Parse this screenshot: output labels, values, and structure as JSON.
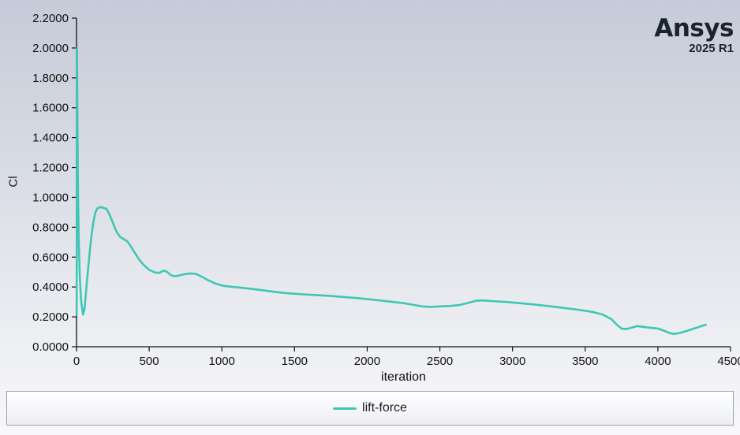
{
  "logo": {
    "brand": "Ansys",
    "version": "2025 R1"
  },
  "chart_data": {
    "type": "line",
    "title": "",
    "xlabel": "iteration",
    "ylabel": "Cl",
    "xlim": [
      0,
      4500
    ],
    "ylim": [
      0,
      2.2
    ],
    "xticks": [
      0,
      500,
      1000,
      1500,
      2000,
      2500,
      3000,
      3500,
      4000,
      4500
    ],
    "yticks": [
      0,
      0.2,
      0.4,
      0.6,
      0.8,
      1.0,
      1.2,
      1.4,
      1.6,
      1.8,
      2.0,
      2.2
    ],
    "ytick_decimals": 4,
    "grid": false,
    "legend_position": "bottom",
    "axis_color": "#111111",
    "series": [
      {
        "name": "lift-force",
        "color": "#3fc7b4",
        "points": [
          [
            1,
            0.215
          ],
          [
            3,
            2.0
          ],
          [
            6,
            1.55
          ],
          [
            10,
            1.05
          ],
          [
            15,
            0.72
          ],
          [
            22,
            0.47
          ],
          [
            32,
            0.3
          ],
          [
            45,
            0.215
          ],
          [
            55,
            0.25
          ],
          [
            70,
            0.42
          ],
          [
            85,
            0.58
          ],
          [
            100,
            0.72
          ],
          [
            115,
            0.83
          ],
          [
            130,
            0.9
          ],
          [
            145,
            0.928
          ],
          [
            165,
            0.935
          ],
          [
            185,
            0.93
          ],
          [
            205,
            0.925
          ],
          [
            225,
            0.89
          ],
          [
            250,
            0.83
          ],
          [
            275,
            0.77
          ],
          [
            300,
            0.735
          ],
          [
            325,
            0.72
          ],
          [
            350,
            0.705
          ],
          [
            375,
            0.67
          ],
          [
            400,
            0.63
          ],
          [
            430,
            0.585
          ],
          [
            460,
            0.55
          ],
          [
            500,
            0.515
          ],
          [
            540,
            0.497
          ],
          [
            570,
            0.495
          ],
          [
            600,
            0.51
          ],
          [
            625,
            0.5
          ],
          [
            650,
            0.478
          ],
          [
            680,
            0.472
          ],
          [
            710,
            0.478
          ],
          [
            740,
            0.485
          ],
          [
            780,
            0.49
          ],
          [
            820,
            0.488
          ],
          [
            860,
            0.47
          ],
          [
            900,
            0.448
          ],
          [
            950,
            0.425
          ],
          [
            1000,
            0.41
          ],
          [
            1060,
            0.402
          ],
          [
            1120,
            0.397
          ],
          [
            1180,
            0.39
          ],
          [
            1250,
            0.382
          ],
          [
            1320,
            0.373
          ],
          [
            1400,
            0.363
          ],
          [
            1480,
            0.356
          ],
          [
            1560,
            0.351
          ],
          [
            1650,
            0.346
          ],
          [
            1750,
            0.34
          ],
          [
            1850,
            0.332
          ],
          [
            1950,
            0.324
          ],
          [
            2050,
            0.314
          ],
          [
            2150,
            0.303
          ],
          [
            2250,
            0.292
          ],
          [
            2320,
            0.28
          ],
          [
            2380,
            0.27
          ],
          [
            2430,
            0.267
          ],
          [
            2500,
            0.27
          ],
          [
            2570,
            0.273
          ],
          [
            2640,
            0.28
          ],
          [
            2700,
            0.295
          ],
          [
            2750,
            0.308
          ],
          [
            2800,
            0.31
          ],
          [
            2850,
            0.306
          ],
          [
            2950,
            0.3
          ],
          [
            3050,
            0.292
          ],
          [
            3150,
            0.283
          ],
          [
            3250,
            0.272
          ],
          [
            3350,
            0.26
          ],
          [
            3450,
            0.248
          ],
          [
            3550,
            0.233
          ],
          [
            3620,
            0.215
          ],
          [
            3680,
            0.185
          ],
          [
            3720,
            0.145
          ],
          [
            3750,
            0.122
          ],
          [
            3780,
            0.118
          ],
          [
            3820,
            0.128
          ],
          [
            3860,
            0.138
          ],
          [
            3900,
            0.133
          ],
          [
            3950,
            0.127
          ],
          [
            4000,
            0.122
          ],
          [
            4040,
            0.108
          ],
          [
            4080,
            0.092
          ],
          [
            4110,
            0.086
          ],
          [
            4150,
            0.092
          ],
          [
            4200,
            0.106
          ],
          [
            4250,
            0.122
          ],
          [
            4300,
            0.138
          ],
          [
            4330,
            0.147
          ]
        ]
      }
    ]
  }
}
